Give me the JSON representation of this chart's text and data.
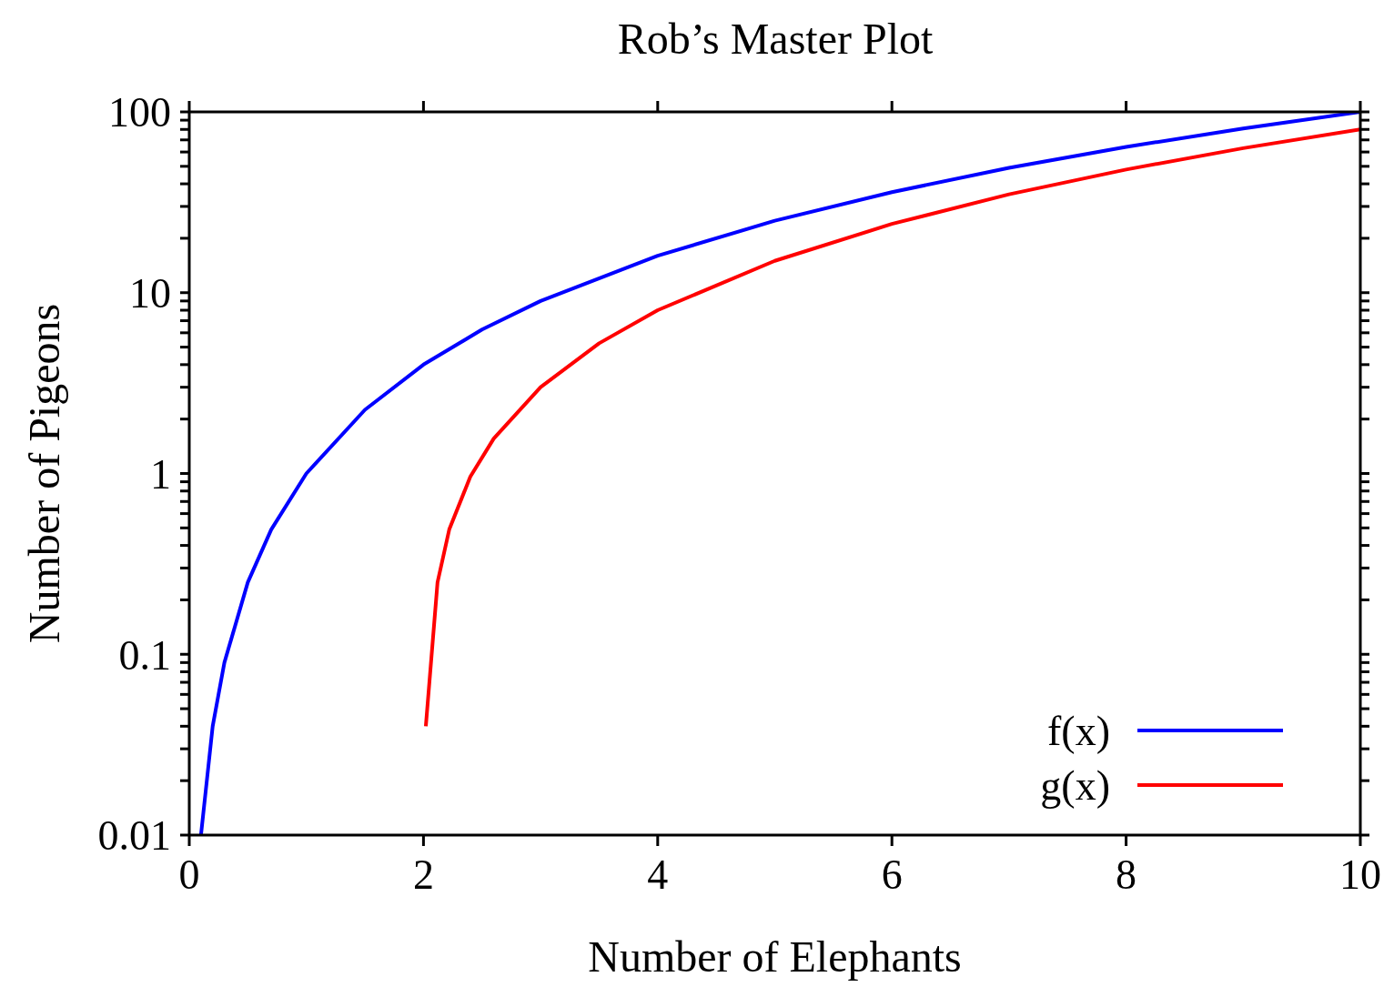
{
  "chart_data": {
    "type": "line",
    "title": "Rob’s Master Plot",
    "xlabel": "Number of Elephants",
    "ylabel": "Number of Pigeons",
    "log": "y",
    "xlim": [
      0,
      10
    ],
    "xticks": [
      0,
      2,
      4,
      6,
      8,
      10
    ],
    "ylim": [
      0.01,
      100
    ],
    "yticks": [
      0.01,
      {
        "value": 0.02,
        "label": null
      },
      {
        "value": 0.03,
        "label": null
      },
      {
        "value": 0.04,
        "label": null
      },
      {
        "value": 0.05,
        "label": null
      },
      {
        "value": 0.06,
        "label": null
      },
      {
        "value": 0.07,
        "label": null
      },
      {
        "value": 0.08,
        "label": null
      },
      {
        "value": 0.09,
        "label": null
      },
      0.1,
      {
        "value": 0.2,
        "label": null
      },
      {
        "value": 0.3,
        "label": null
      },
      {
        "value": 0.4,
        "label": null
      },
      {
        "value": 0.5,
        "label": null
      },
      {
        "value": 0.6,
        "label": null
      },
      {
        "value": 0.7,
        "label": null
      },
      {
        "value": 0.8,
        "label": null
      },
      {
        "value": 0.9,
        "label": null
      },
      1,
      {
        "value": 2,
        "label": null
      },
      {
        "value": 3,
        "label": null
      },
      {
        "value": 4,
        "label": null
      },
      {
        "value": 5,
        "label": null
      },
      {
        "value": 6,
        "label": null
      },
      {
        "value": 7,
        "label": null
      },
      {
        "value": 8,
        "label": null
      },
      {
        "value": 9,
        "label": null
      },
      10,
      {
        "value": 20,
        "label": null
      },
      {
        "value": 30,
        "label": null
      },
      {
        "value": 40,
        "label": null
      },
      {
        "value": 50,
        "label": null
      },
      {
        "value": 60,
        "label": null
      },
      {
        "value": 70,
        "label": null
      },
      {
        "value": 80,
        "label": null
      },
      {
        "value": 90,
        "label": null
      },
      100
    ],
    "legend": "bottom right",
    "line_style": "solid",
    "series": [
      {
        "name": "f(x)",
        "color": "#0000ff",
        "x": [
          0.1,
          0.2,
          0.3,
          0.5,
          0.7,
          1,
          1.5,
          2,
          2.5,
          3,
          4,
          5,
          6,
          7,
          8,
          9,
          10
        ],
        "values": [
          0.01,
          0.04,
          0.09,
          0.25,
          0.49,
          1,
          2.25,
          4,
          6.25,
          9,
          16,
          25,
          36,
          49,
          64,
          81,
          100
        ]
      },
      {
        "name": "g(x)",
        "color": "#ff0000",
        "x": [
          2.02,
          2.12,
          2.22,
          2.4,
          2.6,
          3,
          3.5,
          4,
          5,
          6,
          7,
          8,
          9,
          10
        ],
        "values": [
          0.04,
          0.25,
          0.49,
          0.96,
          1.56,
          3,
          5.25,
          8,
          15,
          24,
          35,
          48,
          63,
          80
        ]
      }
    ]
  }
}
